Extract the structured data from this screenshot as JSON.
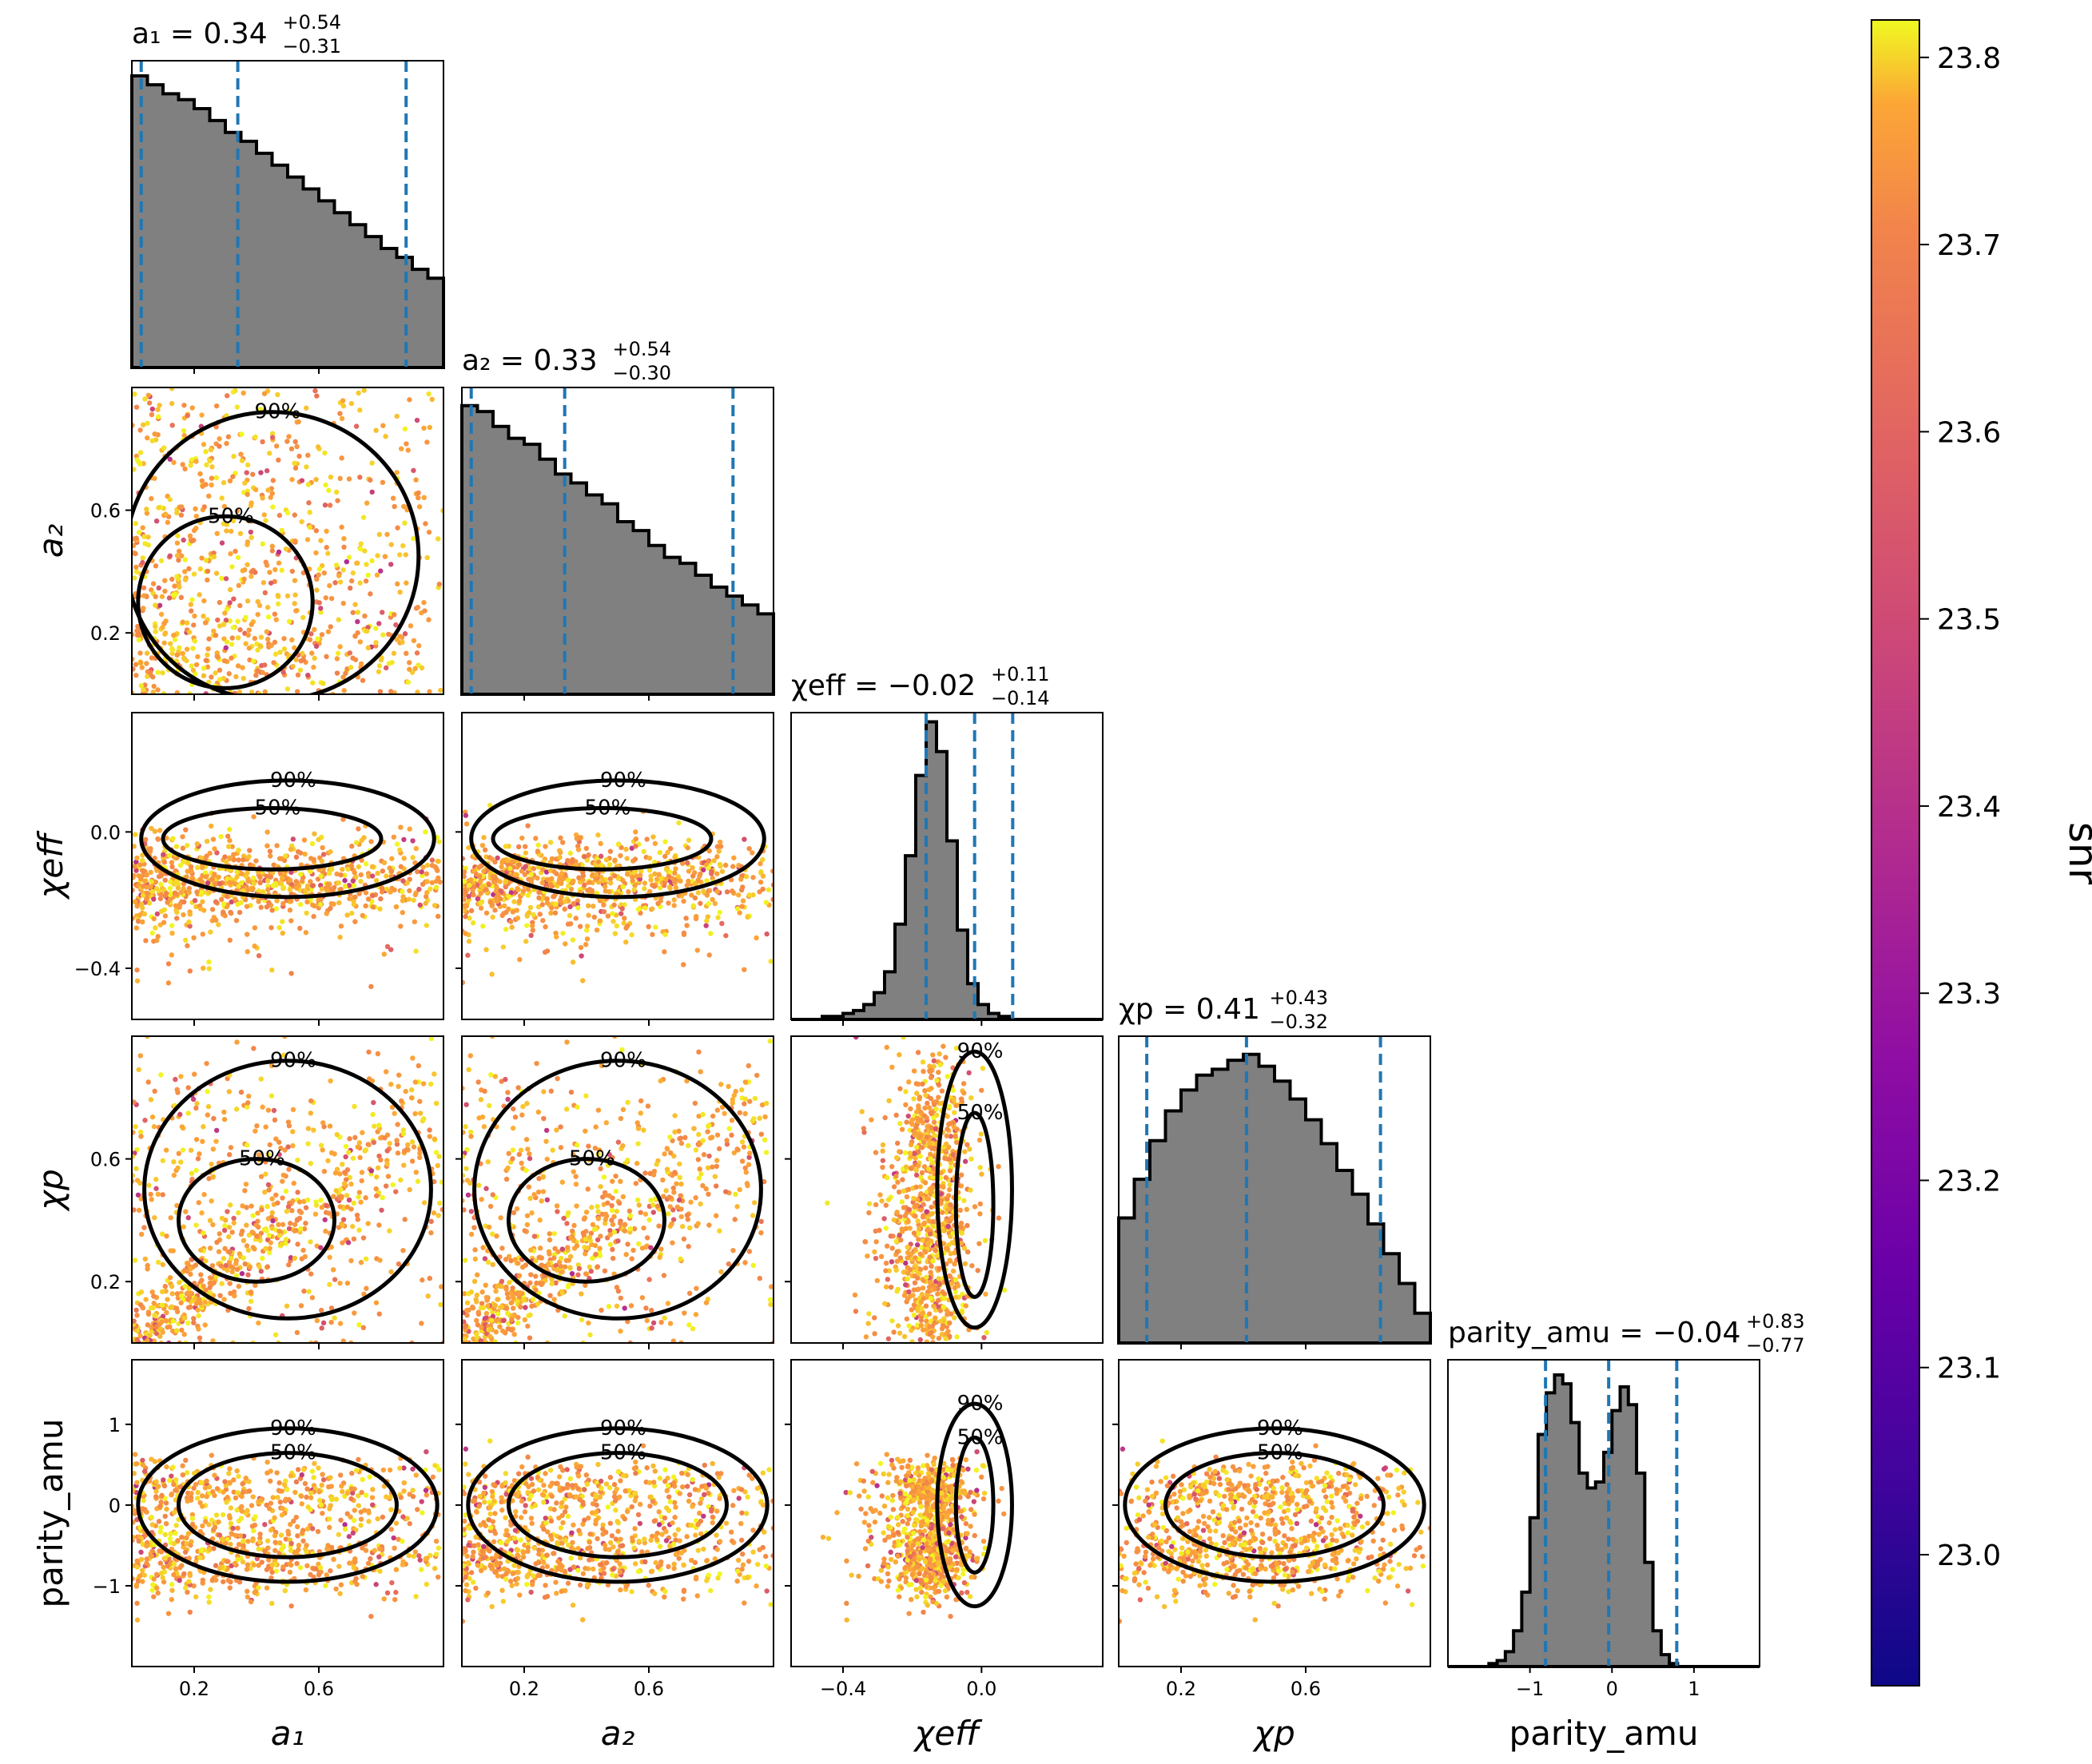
{
  "parameters": [
    {
      "key": "a1",
      "label": "a₁",
      "title": "a₁ = 0.34",
      "err_plus": "+0.54",
      "err_minus": "−0.31",
      "median": 0.34,
      "q_low": 0.03,
      "q_high": 0.88,
      "ticks": [
        0.2,
        0.6
      ],
      "tick_labels": [
        "0.2",
        "0.6"
      ]
    },
    {
      "key": "a2",
      "label": "a₂",
      "title": "a₂ = 0.33",
      "err_plus": "+0.54",
      "err_minus": "−0.30",
      "median": 0.33,
      "q_low": 0.03,
      "q_high": 0.87,
      "ticks": [
        0.2,
        0.6
      ],
      "tick_labels": [
        "0.2",
        "0.6"
      ]
    },
    {
      "key": "chi_eff",
      "label": "χeff",
      "title": "χeff = −0.02",
      "err_plus": "+0.11",
      "err_minus": "−0.14",
      "median": -0.02,
      "q_low": -0.16,
      "q_high": 0.09,
      "ticks": [
        -0.4,
        0.0
      ],
      "tick_labels": [
        "−0.4",
        "0.0"
      ]
    },
    {
      "key": "chi_p",
      "label": "χp",
      "title": "χp = 0.41",
      "err_plus": "+0.43",
      "err_minus": "−0.32",
      "median": 0.41,
      "q_low": 0.09,
      "q_high": 0.84,
      "ticks": [
        0.2,
        0.6
      ],
      "tick_labels": [
        "0.2",
        "0.6"
      ]
    },
    {
      "key": "parity_amu",
      "label": "parity_amu",
      "title": "parity_amu = −0.04",
      "err_plus": "+0.83",
      "err_minus": "−0.77",
      "median": -0.04,
      "q_low": -0.81,
      "q_high": 0.79,
      "ticks": [
        -1,
        0,
        1
      ],
      "tick_labels": [
        "−1",
        "0",
        "1"
      ]
    }
  ],
  "colorbar": {
    "label": "snr",
    "min": 22.93,
    "max": 23.82,
    "ticks": [
      23.0,
      23.1,
      23.2,
      23.3,
      23.4,
      23.5,
      23.6,
      23.7,
      23.8
    ],
    "tick_labels": [
      "23.0",
      "23.1",
      "23.2",
      "23.3",
      "23.4",
      "23.5",
      "23.6",
      "23.7",
      "23.8"
    ],
    "colormap": "plasma"
  },
  "contour_labels": {
    "inner": "50%",
    "outer": "90%"
  },
  "colors": {
    "histogram_fill": "#808080",
    "quantile_line": "#1f77b4",
    "contour": "#000000"
  },
  "chart_data": {
    "type": "corner",
    "ranges": [
      [
        0.0,
        1.0
      ],
      [
        0.0,
        1.0
      ],
      [
        -0.55,
        0.35
      ],
      [
        0.0,
        1.0
      ],
      [
        -2.0,
        1.8
      ]
    ],
    "histograms": [
      {
        "param": "a1",
        "bin_start": 0.0,
        "bin_width": 0.05,
        "values": [
          0.98,
          0.95,
          0.92,
          0.9,
          0.87,
          0.83,
          0.79,
          0.76,
          0.72,
          0.68,
          0.64,
          0.6,
          0.56,
          0.52,
          0.48,
          0.44,
          0.4,
          0.37,
          0.33,
          0.3
        ]
      },
      {
        "param": "a2",
        "bin_start": 0.0,
        "bin_width": 0.05,
        "values": [
          0.97,
          0.95,
          0.9,
          0.86,
          0.84,
          0.79,
          0.74,
          0.71,
          0.67,
          0.64,
          0.58,
          0.55,
          0.5,
          0.46,
          0.44,
          0.4,
          0.36,
          0.33,
          0.3,
          0.27
        ]
      },
      {
        "param": "chi_eff",
        "bin_start": -0.55,
        "bin_width": 0.03,
        "values": [
          0.0,
          0.0,
          0.0,
          0.01,
          0.01,
          0.02,
          0.03,
          0.05,
          0.09,
          0.16,
          0.32,
          0.55,
          0.82,
          1.0,
          0.9,
          0.6,
          0.3,
          0.12,
          0.05,
          0.02,
          0.01,
          0.0,
          0.0,
          0.0,
          0.0,
          0.0,
          0.0,
          0.0,
          0.0,
          0.0
        ]
      },
      {
        "param": "chi_p",
        "bin_start": 0.0,
        "bin_width": 0.05,
        "values": [
          0.42,
          0.55,
          0.68,
          0.78,
          0.85,
          0.9,
          0.92,
          0.95,
          0.97,
          0.93,
          0.88,
          0.82,
          0.75,
          0.67,
          0.58,
          0.5,
          0.4,
          0.3,
          0.2,
          0.1
        ]
      },
      {
        "param": "parity_amu",
        "bin_start": -2.0,
        "bin_width": 0.1,
        "values": [
          0.0,
          0.0,
          0.0,
          0.0,
          0.0,
          0.01,
          0.02,
          0.05,
          0.12,
          0.25,
          0.5,
          0.78,
          0.92,
          0.98,
          0.95,
          0.82,
          0.65,
          0.6,
          0.62,
          0.72,
          0.86,
          0.94,
          0.88,
          0.65,
          0.35,
          0.12,
          0.04,
          0.01,
          0.0,
          0.0,
          0.0,
          0.0,
          0.0,
          0.0,
          0.0,
          0.0,
          0.0,
          0.0
        ]
      }
    ],
    "scatter_descriptions": {
      "color_by": "snr",
      "note": "points colored by snr; posterior samples bulk near 23.7-23.8"
    }
  }
}
